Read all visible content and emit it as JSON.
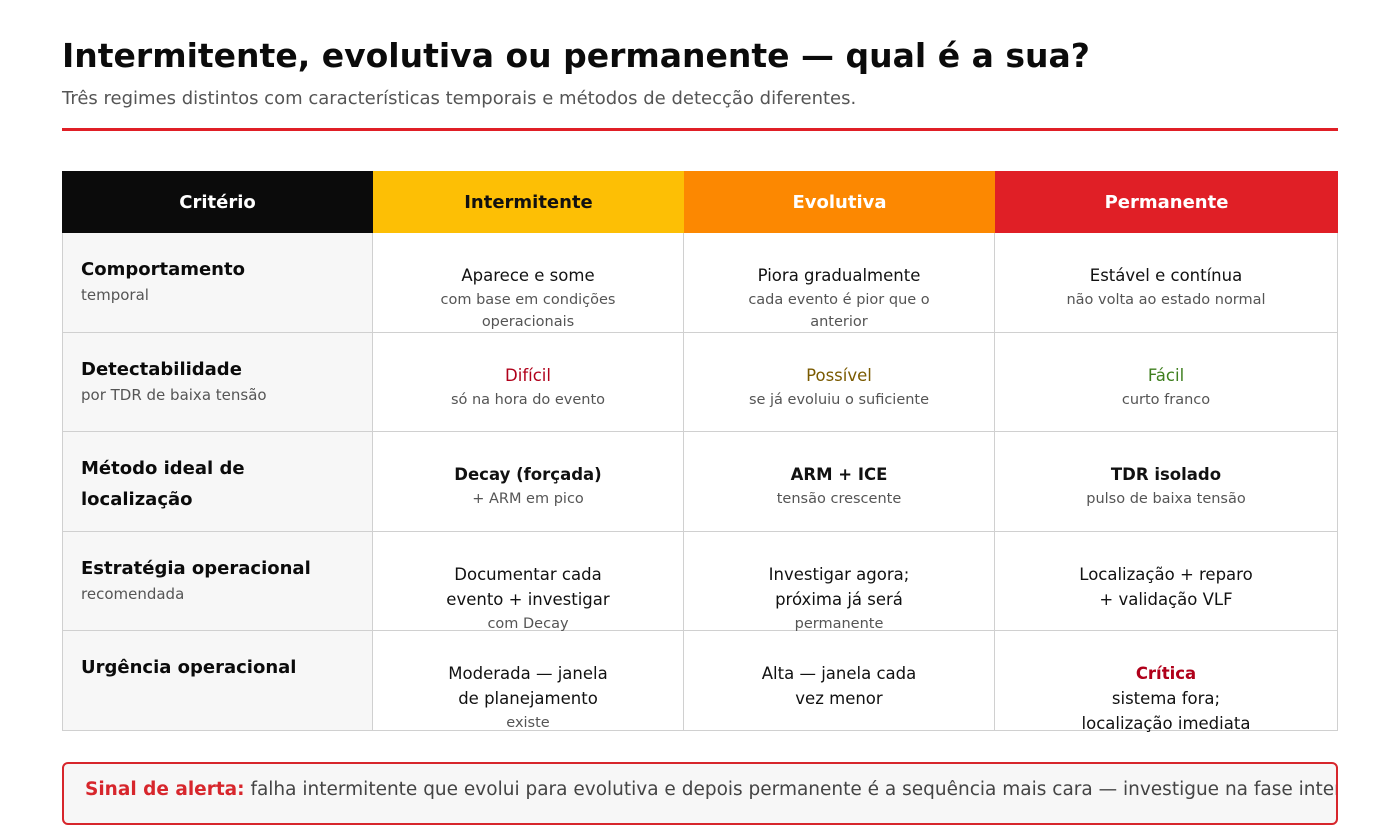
{
  "header": {
    "title": "Intermitente, evolutiva ou permanente — qual é a sua?",
    "subtitle": "Três regimes distintos com características temporais e métodos de detecção diferentes."
  },
  "colors": {
    "accent_red": "#e01f26",
    "header_black": "#0b0b0b",
    "header_yellow": "#fdbf05",
    "header_orange": "#fc8801",
    "header_red": "#e01f26",
    "text_dark_red": "#b0001a",
    "text_olive": "#7a5a00",
    "text_green": "#3f7f1f"
  },
  "table": {
    "columns": [
      {
        "label": "Critério",
        "bg": "#0b0b0b",
        "fg": "#ffffff"
      },
      {
        "label": "Intermitente",
        "bg": "#fdbf05",
        "fg": "#111111"
      },
      {
        "label": "Evolutiva",
        "bg": "#fc8801",
        "fg": "#ffffff"
      },
      {
        "label": "Permanente",
        "bg": "#e01f26",
        "fg": "#ffffff"
      }
    ],
    "rows": [
      {
        "criterion": "Comportamento",
        "criterion_sub": "temporal",
        "cells": [
          {
            "main": "Aparece e some",
            "sub": "com base em condições operacionais"
          },
          {
            "main": "Piora gradualmente",
            "sub": "cada evento é pior que o anterior"
          },
          {
            "main": "Estável e contínua",
            "sub": "não volta ao estado normal"
          }
        ]
      },
      {
        "criterion": "Detectabilidade",
        "criterion_sub": "por TDR de baixa tensão",
        "cells": [
          {
            "main": "Difícil",
            "sub": "só na hora do evento",
            "color": "#b0001a"
          },
          {
            "main": "Possível",
            "sub": "se já evoluiu o suficiente",
            "color": "#7a5a00"
          },
          {
            "main": "Fácil",
            "sub": "curto franco",
            "color": "#3f7f1f"
          }
        ]
      },
      {
        "criterion": "Método ideal de localização",
        "criterion_sub": "",
        "cells": [
          {
            "main": "Decay (forçada)",
            "sub": "+ ARM em pico",
            "bold": true
          },
          {
            "main": "ARM + ICE",
            "sub": "tensão crescente",
            "bold": true
          },
          {
            "main": "TDR isolado",
            "sub": "pulso de baixa tensão",
            "bold": true
          }
        ]
      },
      {
        "criterion": "Estratégia operacional",
        "criterion_sub": "recomendada",
        "cells": [
          {
            "main": "Documentar cada evento + investigar",
            "sub": "com Decay"
          },
          {
            "main": "Investigar agora; próxima já será",
            "sub": "permanente"
          },
          {
            "main": "Localização + reparo + validação VLF",
            "sub": ""
          }
        ]
      },
      {
        "criterion": "Urgência operacional",
        "criterion_sub": "",
        "cells": [
          {
            "main": "Moderada — janela de planejamento",
            "sub": "existe"
          },
          {
            "main": "Alta — janela cada vez menor",
            "sub": ""
          },
          {
            "main": "Crítica",
            "main2": "sistema fora; localização imediata",
            "sub": "",
            "color": "#b0001a",
            "bold": true
          }
        ]
      }
    ]
  },
  "alert": {
    "label": "Sinal de alerta:",
    "text": " falha intermitente que evolui para evolutiva e depois permanente é a sequência mais cara — investigue na fase intermitente."
  }
}
